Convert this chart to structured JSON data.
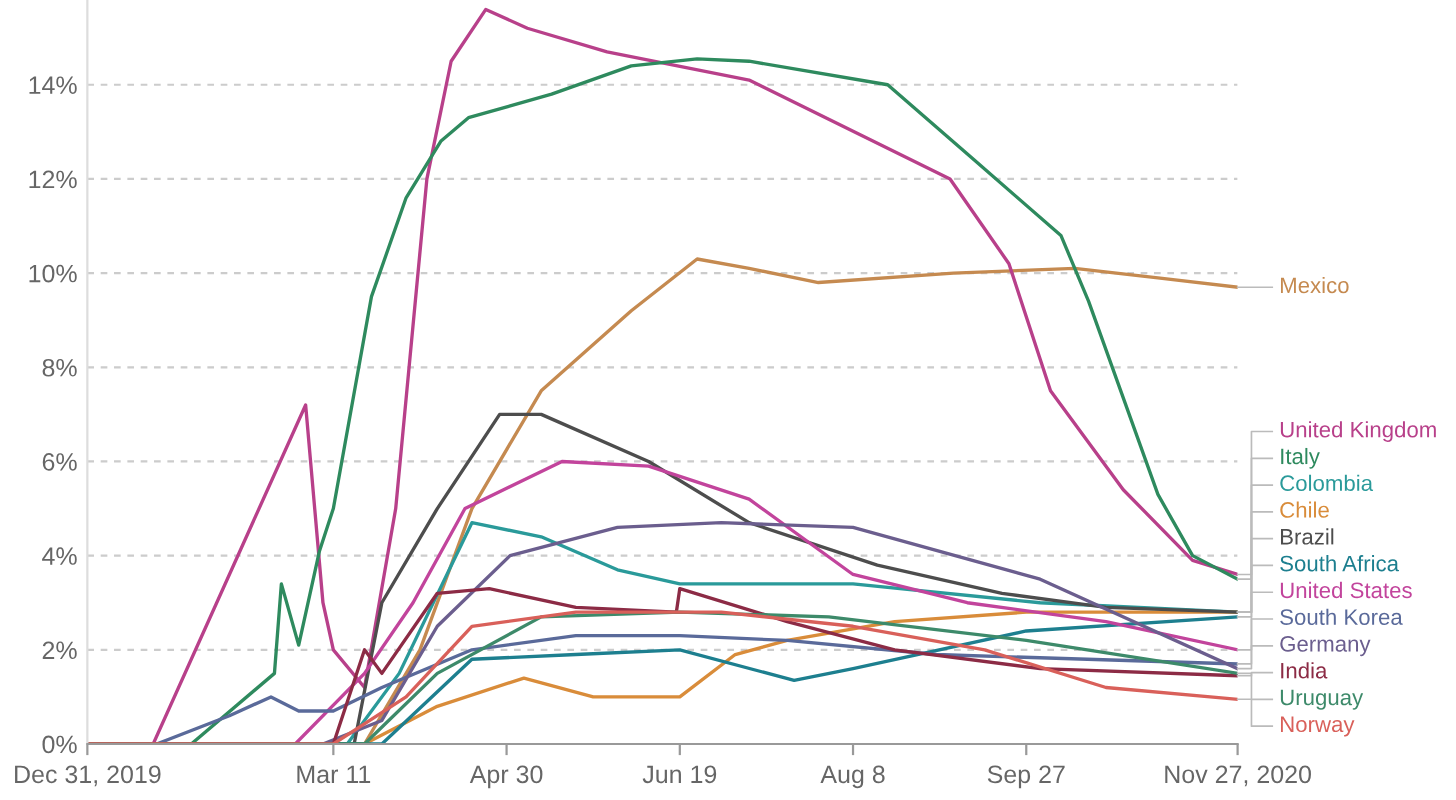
{
  "chart_data": {
    "type": "line",
    "xlim": [
      "2019-12-31",
      "2020-11-27"
    ],
    "xticks": [
      {
        "value": "2019-12-31",
        "label": "Dec 31, 2019"
      },
      {
        "value": "2020-03-11",
        "label": "Mar 11"
      },
      {
        "value": "2020-04-30",
        "label": "Apr 30"
      },
      {
        "value": "2020-06-19",
        "label": "Jun 19"
      },
      {
        "value": "2020-08-08",
        "label": "Aug 8"
      },
      {
        "value": "2020-09-27",
        "label": "Sep 27"
      },
      {
        "value": "2020-11-27",
        "label": "Nov 27, 2020"
      }
    ],
    "ylim": [
      0,
      15.8
    ],
    "yticks": [
      {
        "value": 0,
        "label": "0%"
      },
      {
        "value": 2,
        "label": "2%"
      },
      {
        "value": 4,
        "label": "4%"
      },
      {
        "value": 6,
        "label": "6%"
      },
      {
        "value": 8,
        "label": "8%"
      },
      {
        "value": 10,
        "label": "10%"
      },
      {
        "value": 12,
        "label": "12%"
      },
      {
        "value": 14,
        "label": "14%"
      }
    ],
    "grid": "y",
    "legend": "right",
    "marker": "none",
    "line_style": "solid",
    "series": [
      {
        "name": "Mexico",
        "color": "#c58a50",
        "x": [
          "2019-12-31",
          "2020-03-20",
          "2020-04-05",
          "2020-04-20",
          "2020-05-10",
          "2020-06-05",
          "2020-06-24",
          "2020-07-09",
          "2020-07-29",
          "2020-09-06",
          "2020-10-11",
          "2020-11-04",
          "2020-11-27"
        ],
        "values": [
          0,
          0,
          2.0,
          5.0,
          7.5,
          9.2,
          10.3,
          10.1,
          9.8,
          10.0,
          10.1,
          9.9,
          9.7
        ]
      },
      {
        "name": "United Kingdom",
        "color": "#b8408a",
        "x": [
          "2019-12-31",
          "2020-01-19",
          "2020-03-03",
          "2020-03-08",
          "2020-03-11",
          "2020-03-20",
          "2020-03-29",
          "2020-04-07",
          "2020-04-14",
          "2020-04-24",
          "2020-05-06",
          "2020-05-29",
          "2020-07-09",
          "2020-09-05",
          "2020-09-22",
          "2020-10-04",
          "2020-10-25",
          "2020-11-14",
          "2020-11-27"
        ],
        "values": [
          0,
          0,
          7.2,
          3.0,
          2.0,
          1.2,
          5.0,
          12.0,
          14.5,
          15.6,
          15.2,
          14.7,
          14.1,
          12.0,
          10.2,
          7.5,
          5.4,
          3.9,
          3.6
        ]
      },
      {
        "name": "Italy",
        "color": "#2e8a5e",
        "x": [
          "2019-12-31",
          "2020-01-30",
          "2020-02-23",
          "2020-02-25",
          "2020-03-01",
          "2020-03-07",
          "2020-03-11",
          "2020-03-22",
          "2020-04-01",
          "2020-04-11",
          "2020-04-19",
          "2020-05-13",
          "2020-06-05",
          "2020-06-24",
          "2020-07-09",
          "2020-08-18",
          "2020-09-12",
          "2020-10-07",
          "2020-10-15",
          "2020-11-04",
          "2020-11-14",
          "2020-11-27"
        ],
        "values": [
          0,
          0,
          1.5,
          3.4,
          2.1,
          4.1,
          5.0,
          9.5,
          11.6,
          12.8,
          13.3,
          13.8,
          14.4,
          14.55,
          14.5,
          14.0,
          12.4,
          10.8,
          9.4,
          5.3,
          4.0,
          3.5
        ]
      },
      {
        "name": "Colombia",
        "color": "#2a9a9a",
        "x": [
          "2019-12-31",
          "2020-03-15",
          "2020-03-30",
          "2020-04-20",
          "2020-05-10",
          "2020-06-01",
          "2020-06-19",
          "2020-08-08",
          "2020-10-01",
          "2020-11-27"
        ],
        "values": [
          0,
          0,
          1.5,
          4.7,
          4.4,
          3.7,
          3.4,
          3.4,
          3.0,
          2.8
        ]
      },
      {
        "name": "Chile",
        "color": "#d98c3a",
        "x": [
          "2019-12-31",
          "2020-03-20",
          "2020-04-10",
          "2020-05-05",
          "2020-05-25",
          "2020-06-19",
          "2020-07-05",
          "2020-07-20",
          "2020-08-20",
          "2020-09-27",
          "2020-11-27"
        ],
        "values": [
          0,
          0,
          0.8,
          1.4,
          1.0,
          1.0,
          1.9,
          2.2,
          2.6,
          2.8,
          2.8
        ]
      },
      {
        "name": "Brazil",
        "color": "#4d4d4d",
        "x": [
          "2019-12-31",
          "2020-03-17",
          "2020-03-25",
          "2020-04-10",
          "2020-04-28",
          "2020-05-10",
          "2020-06-10",
          "2020-07-09",
          "2020-08-15",
          "2020-09-20",
          "2020-10-20",
          "2020-11-27"
        ],
        "values": [
          0,
          0,
          3.0,
          5.0,
          7.0,
          7.0,
          6.0,
          4.7,
          3.8,
          3.2,
          2.9,
          2.8
        ]
      },
      {
        "name": "South Africa",
        "color": "#1d7f8f",
        "x": [
          "2019-12-31",
          "2020-03-25",
          "2020-04-20",
          "2020-05-20",
          "2020-06-19",
          "2020-07-22",
          "2020-08-08",
          "2020-09-27",
          "2020-11-27"
        ],
        "values": [
          0,
          0,
          1.8,
          1.9,
          2.0,
          1.35,
          1.6,
          2.4,
          2.7
        ]
      },
      {
        "name": "United States",
        "color": "#c2449c",
        "x": [
          "2019-12-31",
          "2020-02-29",
          "2020-03-20",
          "2020-04-03",
          "2020-04-18",
          "2020-05-16",
          "2020-06-10",
          "2020-07-09",
          "2020-08-08",
          "2020-09-10",
          "2020-10-20",
          "2020-11-27"
        ],
        "values": [
          0,
          0,
          1.5,
          3.0,
          5.0,
          6.0,
          5.9,
          5.2,
          3.6,
          3.0,
          2.6,
          2.0
        ]
      },
      {
        "name": "South Korea",
        "color": "#5a6a9a",
        "x": [
          "2019-12-31",
          "2020-01-20",
          "2020-02-10",
          "2020-02-22",
          "2020-03-01",
          "2020-03-11",
          "2020-03-25",
          "2020-04-20",
          "2020-05-20",
          "2020-06-19",
          "2020-07-20",
          "2020-09-01",
          "2020-11-27"
        ],
        "values": [
          0,
          0,
          0.6,
          1.0,
          0.7,
          0.7,
          1.2,
          2.0,
          2.3,
          2.3,
          2.2,
          1.9,
          1.7
        ]
      },
      {
        "name": "Germany",
        "color": "#6b5e8e",
        "x": [
          "2019-12-31",
          "2020-03-08",
          "2020-03-25",
          "2020-04-10",
          "2020-05-01",
          "2020-06-01",
          "2020-07-01",
          "2020-08-08",
          "2020-10-01",
          "2020-11-27"
        ],
        "values": [
          0,
          0,
          0.5,
          2.5,
          4.0,
          4.6,
          4.7,
          4.6,
          3.5,
          1.6
        ]
      },
      {
        "name": "India",
        "color": "#8c2b45",
        "x": [
          "2019-12-31",
          "2020-03-11",
          "2020-03-20",
          "2020-03-25",
          "2020-04-10",
          "2020-04-25",
          "2020-05-20",
          "2020-06-18",
          "2020-06-19",
          "2020-07-20",
          "2020-08-20",
          "2020-10-01",
          "2020-11-27"
        ],
        "values": [
          0,
          0,
          2.0,
          1.5,
          3.2,
          3.3,
          2.9,
          2.8,
          3.3,
          2.6,
          2.0,
          1.6,
          1.45
        ]
      },
      {
        "name": "Uruguay",
        "color": "#3d8a6a",
        "x": [
          "2019-12-31",
          "2020-03-20",
          "2020-04-10",
          "2020-05-10",
          "2020-06-19",
          "2020-08-01",
          "2020-09-27",
          "2020-11-27"
        ],
        "values": [
          0,
          0,
          1.5,
          2.7,
          2.8,
          2.7,
          2.2,
          1.5
        ]
      },
      {
        "name": "Norway",
        "color": "#d9605a",
        "x": [
          "2019-12-31",
          "2020-03-11",
          "2020-04-01",
          "2020-04-20",
          "2020-05-20",
          "2020-07-01",
          "2020-08-08",
          "2020-09-15",
          "2020-10-20",
          "2020-11-27"
        ],
        "values": [
          0,
          0,
          1.0,
          2.5,
          2.8,
          2.8,
          2.5,
          2.0,
          1.2,
          0.95
        ]
      }
    ]
  }
}
